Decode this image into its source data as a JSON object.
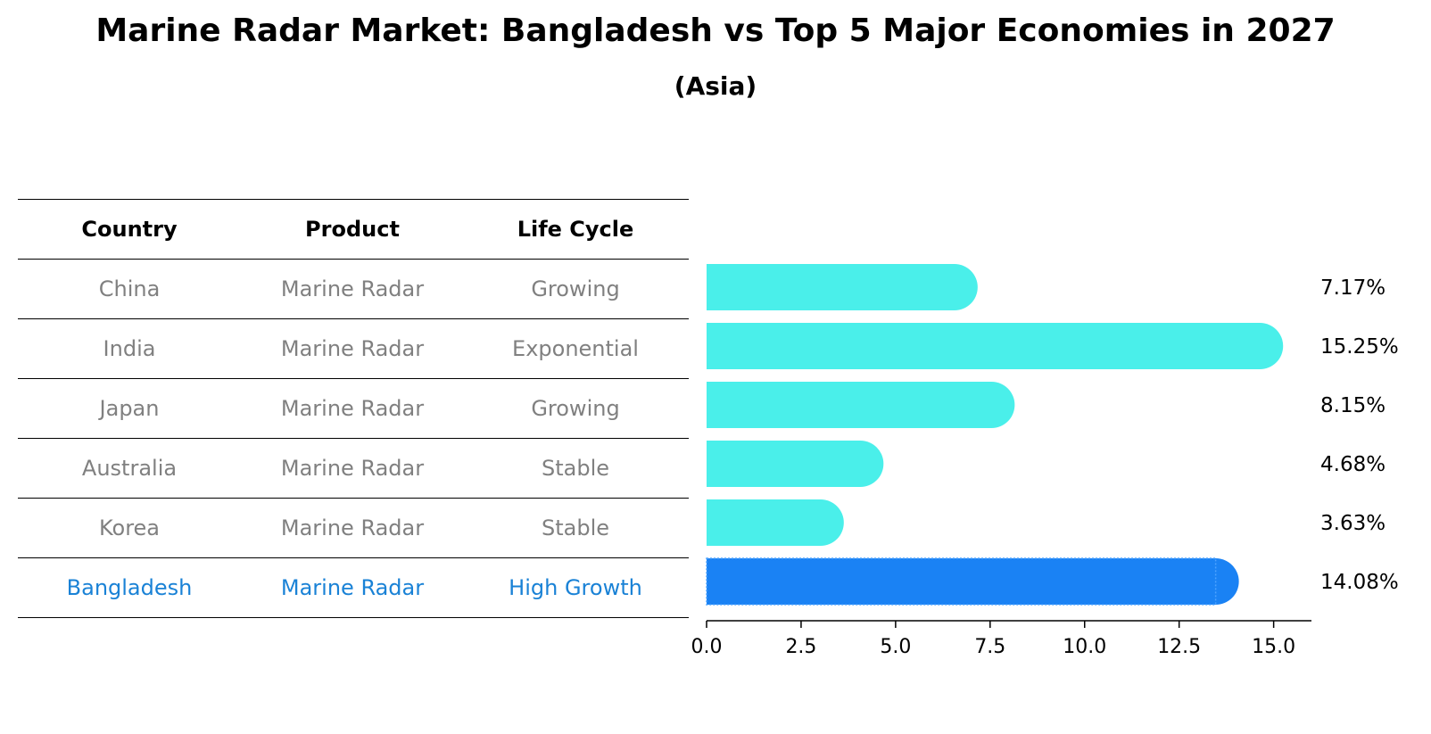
{
  "title": "Marine Radar Market: Bangladesh vs Top 5 Major Economies in 2027",
  "subtitle": "(Asia)",
  "table": {
    "headers": [
      "Country",
      "Product",
      "Life Cycle"
    ],
    "rows": [
      [
        "China",
        "Marine Radar",
        "Growing"
      ],
      [
        "India",
        "Marine Radar",
        "Exponential"
      ],
      [
        "Japan",
        "Marine Radar",
        "Growing"
      ],
      [
        "Australia",
        "Marine Radar",
        "Stable"
      ],
      [
        "Korea",
        "Marine Radar",
        "Stable"
      ],
      [
        "Bangladesh",
        "Marine Radar",
        "High Growth"
      ]
    ]
  },
  "colors": {
    "bar": "#4aefea",
    "highlight": "#1a82f4",
    "highlight_text": "#1a82d6",
    "muted_text": "#808080"
  },
  "chart_data": {
    "type": "bar",
    "orientation": "horizontal",
    "categories": [
      "China",
      "India",
      "Japan",
      "Australia",
      "Korea",
      "Bangladesh"
    ],
    "values": [
      7.17,
      15.25,
      8.15,
      4.68,
      3.63,
      14.08
    ],
    "labels": [
      "7.17%",
      "15.25%",
      "8.15%",
      "4.68%",
      "3.63%",
      "14.08%"
    ],
    "highlight": "Bangladesh",
    "xlim": [
      0,
      16
    ],
    "xticks": [
      "0.0",
      "2.5",
      "5.0",
      "7.5",
      "10.0",
      "12.5",
      "15.0"
    ],
    "xlabel": "",
    "ylabel": ""
  }
}
